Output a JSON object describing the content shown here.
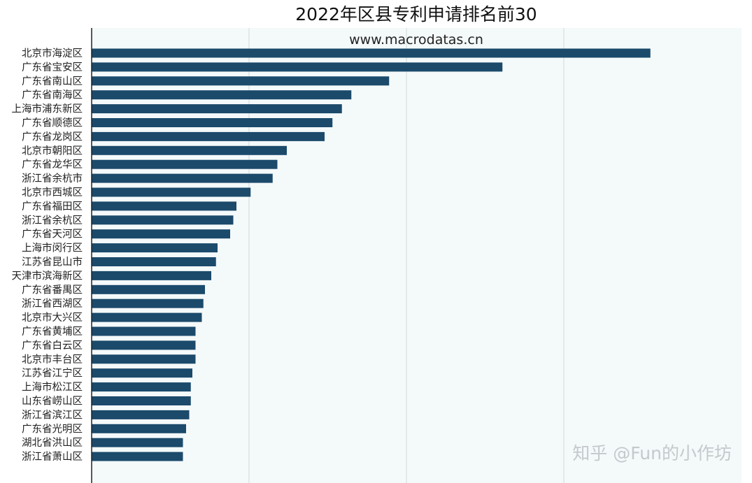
{
  "chart_data": {
    "type": "bar",
    "orientation": "horizontal",
    "title": "2022年区县专利申请排名前30",
    "subtitle": "www.macrodatas.cn",
    "watermark": "知乎 @Fun的小作坊",
    "categories": [
      "北京市海淀区",
      "广东省宝安区",
      "广东省南山区",
      "广东省南海区",
      "上海市浦东新区",
      "广东省顺德区",
      "广东省龙岗区",
      "北京市朝阳区",
      "广东省龙华区",
      "浙江省余杭市",
      "北京市西城区",
      "广东省福田区",
      "浙江省余杭区",
      "广东省天河区",
      "上海市闵行区",
      "江苏省昆山市",
      "天津市滨海新区",
      "广东省番禺区",
      "浙江省西湖区",
      "北京市大兴区",
      "广东省黄埔区",
      "广东省白云区",
      "北京市丰台区",
      "江苏省江宁区",
      "上海市松江区",
      "山东省崂山区",
      "浙江省滨江区",
      "广东省光明区",
      "湖北省洪山区",
      "浙江省萧山区"
    ],
    "values": [
      35.5,
      26.1,
      18.9,
      16.5,
      15.9,
      15.3,
      14.8,
      12.4,
      11.8,
      11.5,
      10.1,
      9.2,
      9.0,
      8.8,
      8.0,
      7.9,
      7.6,
      7.2,
      7.1,
      7.0,
      6.6,
      6.6,
      6.6,
      6.4,
      6.3,
      6.3,
      6.2,
      6.0,
      5.8,
      5.8
    ],
    "xlim": [
      0,
      40
    ],
    "grid": true,
    "bar_color": "#1b4a6b",
    "background_color": "#f4f9fa",
    "grid_color": "#dde6e8"
  }
}
